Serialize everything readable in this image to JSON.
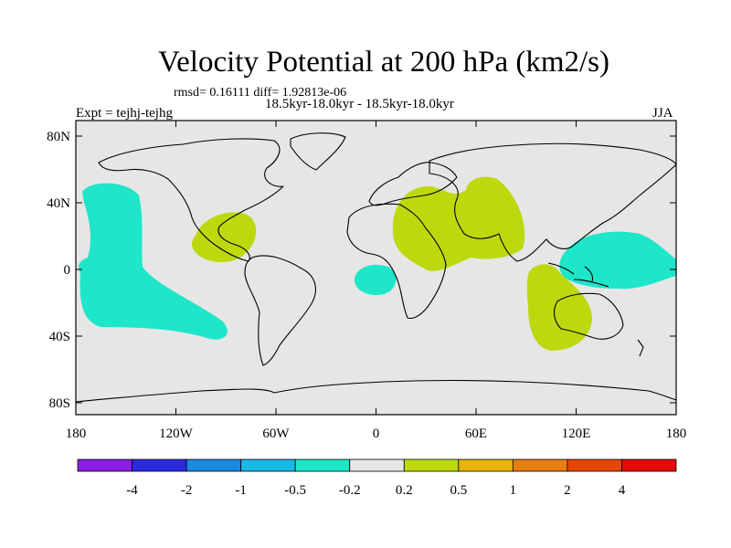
{
  "title": "Velocity Potential at 200 hPa (km2/s)",
  "stats": "rmsd= 0.16111 diff= 1.92813e-06",
  "comparison": "18.5kyr-18.0kyr - 18.5kyr-18.0kyr",
  "experiment": "Expt = tejhj-tejhg",
  "season": "JJA",
  "y_ticks": [
    "80N",
    "40N",
    "0",
    "40S",
    "80S"
  ],
  "x_ticks": [
    "180",
    "120W",
    "60W",
    "0",
    "60E",
    "120E",
    "180"
  ],
  "colorbar": {
    "labels": [
      "-4",
      "-2",
      "-1",
      "-0.5",
      "-0.2",
      "0.2",
      "0.5",
      "1",
      "2",
      "4"
    ],
    "colors": [
      "#8a1ee6",
      "#2a2ae0",
      "#1a8ae0",
      "#1ab8e6",
      "#1ee6c8",
      "#e6e6e6",
      "#bcd90e",
      "#e6b40a",
      "#e67e14",
      "#e6460a",
      "#e60a0a"
    ]
  },
  "map": {
    "background": "#e6e6e6",
    "anomalies": [
      {
        "name": "pacific-east-negative",
        "category": "-0.5 to -0.2",
        "color": "#1ee6c8"
      },
      {
        "name": "atlantic-south-negative",
        "category": "-0.5 to -0.2",
        "color": "#1ee6c8"
      },
      {
        "name": "west-pacific-negative",
        "category": "-0.5 to -0.2",
        "color": "#1ee6c8"
      },
      {
        "name": "caribbean-positive",
        "category": "0.2 to 0.5",
        "color": "#bcd90e"
      },
      {
        "name": "africa-asia-positive",
        "category": "0.2 to 0.5",
        "color": "#bcd90e"
      },
      {
        "name": "indian-ocean-positive",
        "category": "0.2 to 0.5",
        "color": "#bcd90e"
      }
    ]
  }
}
